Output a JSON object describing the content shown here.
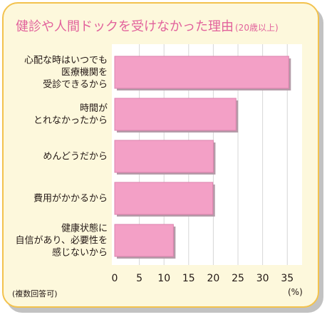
{
  "colors": {
    "card_background": "#fdf8dc",
    "card_border": "#f3c24d",
    "card_shadow": "#c2c2c2",
    "title": "#e2629c",
    "text": "#231815",
    "plot_background": "#ffffff",
    "gridline": "#d6d6d6",
    "bar": "#f3a0c6",
    "bar_edge": "#dd82ad",
    "bar_shadow": "#b49ba8"
  },
  "chart_data": {
    "type": "bar",
    "orientation": "horizontal",
    "title": "健診や人間ドックを受けなかった理由",
    "subtitle": "(20歳以上)",
    "note": "(複数回答可)",
    "xlabel": "(%)",
    "categories": [
      "心配な時はいつでも\n医療機関を\n受診できるから",
      "時間が\nとれなかったから",
      "めんどうだから",
      "費用がかかるから",
      "健康状態に\n自信があり、必要性を\n感じないから"
    ],
    "values": [
      35.3,
      24.6,
      20.0,
      19.9,
      11.9
    ],
    "xlim": [
      0,
      38
    ],
    "xticks": [
      0,
      5,
      10,
      15,
      20,
      25,
      30,
      35
    ],
    "grid": true
  }
}
